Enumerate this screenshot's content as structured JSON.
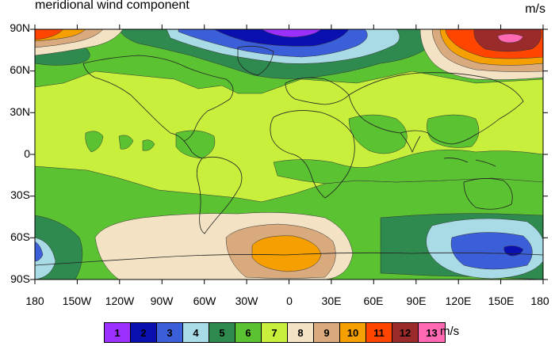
{
  "map": {
    "title": "meridional wind component",
    "units": "m/s",
    "lat_labels": [
      "90N",
      "60N",
      "30N",
      "0",
      "30S",
      "60S",
      "90S"
    ],
    "lon_labels": [
      "180",
      "150W",
      "120W",
      "90W",
      "60W",
      "30W",
      "0",
      "30E",
      "60E",
      "90E",
      "120E",
      "150E",
      "180"
    ]
  },
  "legend": {
    "units": "m/s",
    "bins": [
      {
        "label": "1",
        "color": "#9b30ff"
      },
      {
        "label": "2",
        "color": "#0a0fb0"
      },
      {
        "label": "3",
        "color": "#3b5fd9"
      },
      {
        "label": "4",
        "color": "#a9dbe6"
      },
      {
        "label": "5",
        "color": "#2f8a4f"
      },
      {
        "label": "6",
        "color": "#5bc232"
      },
      {
        "label": "7",
        "color": "#c8ef3c"
      },
      {
        "label": "8",
        "color": "#f3e3c4"
      },
      {
        "label": "9",
        "color": "#d8aa7e"
      },
      {
        "label": "10",
        "color": "#f5a000"
      },
      {
        "label": "11",
        "color": "#ff4500"
      },
      {
        "label": "12",
        "color": "#9b2a2a"
      },
      {
        "label": "13",
        "color": "#ff69b4"
      }
    ]
  },
  "colors": {
    "background_field": "#c8ef3c",
    "coast": "#222222"
  }
}
